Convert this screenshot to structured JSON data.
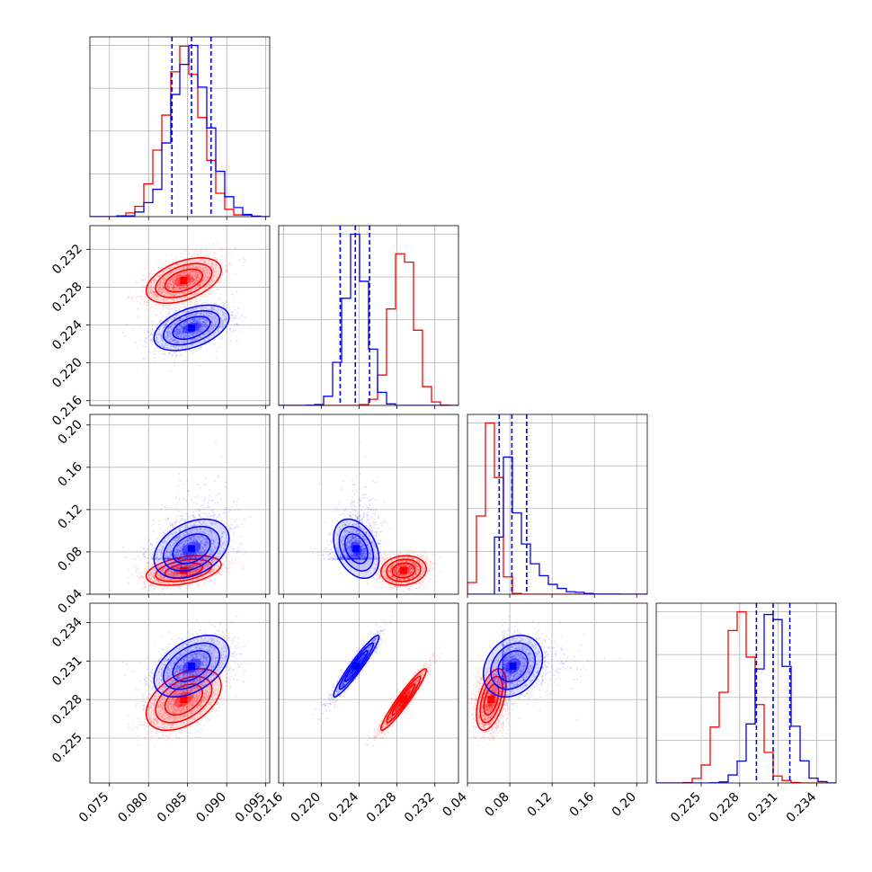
{
  "chart_data": {
    "type": "corner",
    "title": "",
    "grid": true,
    "params": [
      {
        "range": [
          0.0725,
          0.0955
        ],
        "ticks": [
          0.075,
          0.08,
          0.085,
          0.09,
          0.095
        ],
        "tick_labels": [
          "0.075",
          "0.080",
          "0.085",
          "0.090",
          "0.095"
        ]
      },
      {
        "range": [
          0.2155,
          0.2345
        ],
        "ticks": [
          0.216,
          0.22,
          0.224,
          0.228,
          0.232
        ],
        "tick_labels": [
          "0.216",
          "0.220",
          "0.224",
          "0.228",
          "0.232"
        ]
      },
      {
        "range": [
          0.04,
          0.21
        ],
        "ticks": [
          0.04,
          0.08,
          0.12,
          0.16,
          0.2
        ],
        "tick_labels": [
          "0.04",
          "0.08",
          "0.12",
          "0.16",
          "0.20"
        ]
      },
      {
        "range": [
          0.2215,
          0.2355
        ],
        "ticks": [
          0.225,
          0.228,
          0.231,
          0.234
        ],
        "tick_labels": [
          "0.225",
          "0.228",
          "0.231",
          "0.234"
        ]
      }
    ],
    "series": [
      {
        "color": "#ff0000",
        "mean": [
          0.0845,
          0.2287,
          0.0625,
          0.228
        ],
        "std": [
          0.0024,
          0.0012,
          0.007,
          0.0012
        ],
        "corr": [
          [
            1,
            0.45,
            0.4,
            0.45
          ],
          [
            0.45,
            1,
            0.1,
            0.95
          ],
          [
            0.4,
            0.1,
            1,
            0.5
          ],
          [
            0.45,
            0.95,
            0.5,
            1
          ]
        ],
        "quantiles": null
      },
      {
        "color": "#0000ff",
        "mean": [
          0.0855,
          0.2237,
          0.083,
          0.2306
        ],
        "std": [
          0.0024,
          0.0012,
          0.014,
          0.0012
        ],
        "corr": [
          [
            1,
            0.45,
            0.35,
            0.45
          ],
          [
            0.45,
            1,
            -0.35,
            0.95
          ],
          [
            0.35,
            -0.35,
            1,
            0.25
          ],
          [
            0.45,
            0.95,
            0.25,
            1
          ]
        ],
        "quantiles": [
          [
            0.083,
            0.0855,
            0.088
          ],
          [
            0.222,
            0.2236,
            0.2251
          ],
          [
            0.07,
            0.082,
            0.096
          ],
          [
            0.2293,
            0.2306,
            0.2319
          ]
        ]
      }
    ]
  }
}
